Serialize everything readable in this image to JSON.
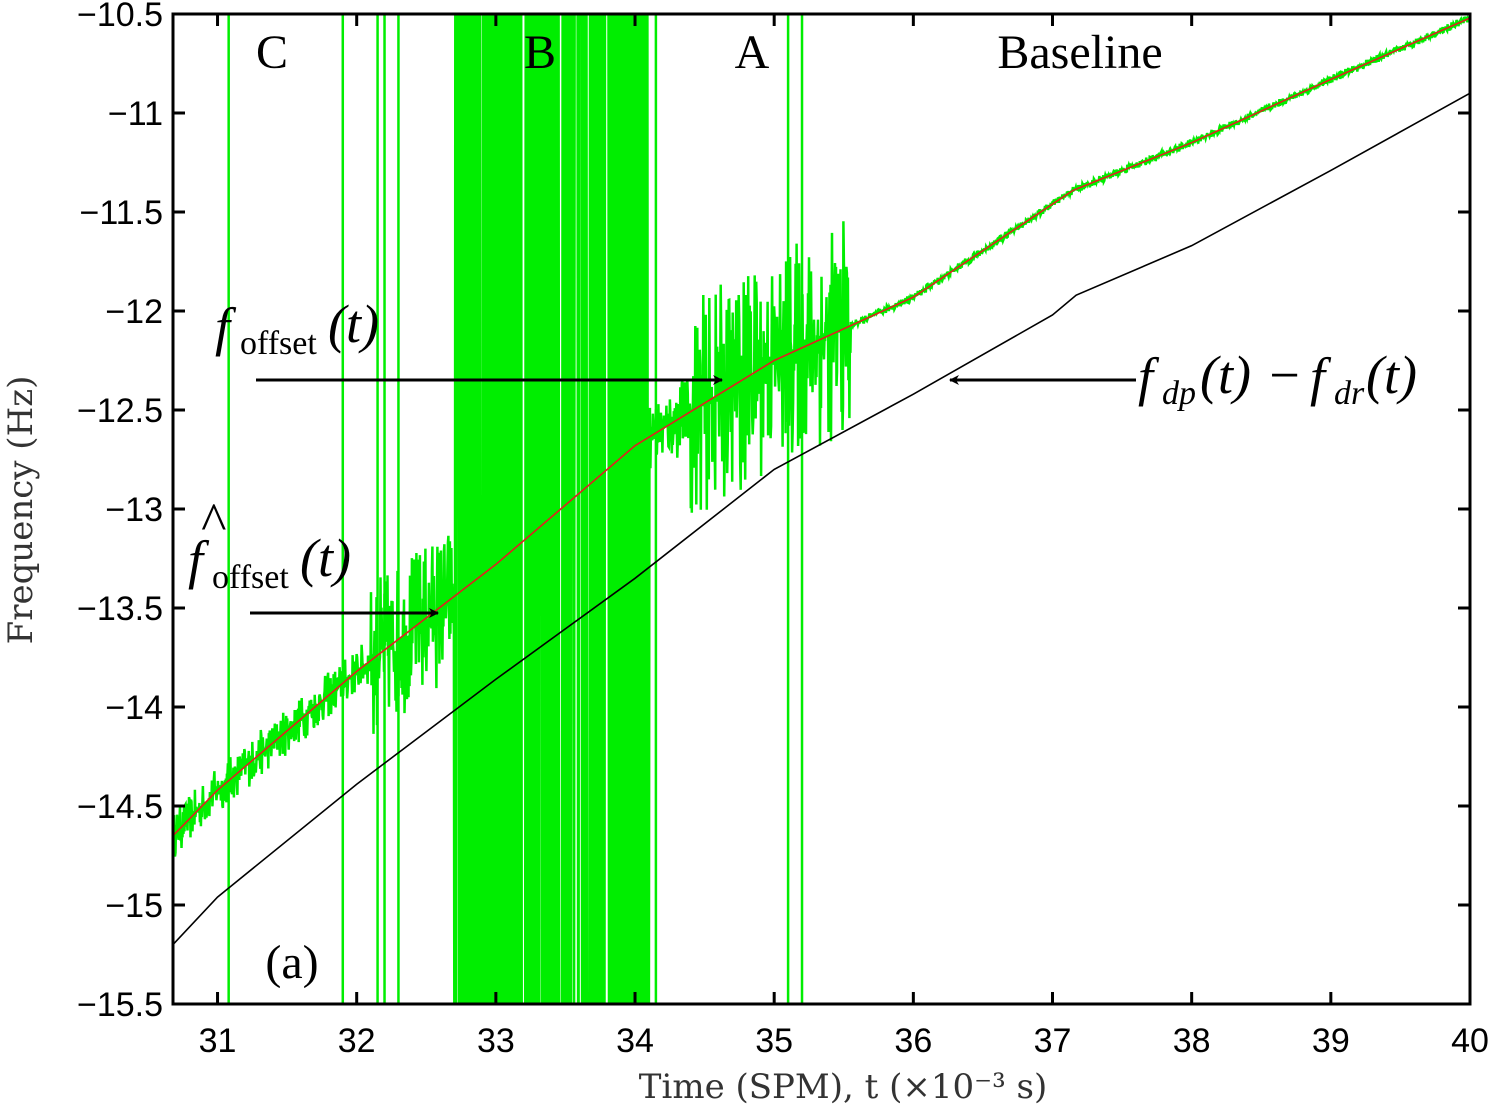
{
  "chart_data": {
    "type": "line",
    "title": "",
    "xlabel": "Time (SPM), t (×10⁻³ s)",
    "ylabel": "Frequency (Hz)",
    "xlim": [
      30.68,
      40
    ],
    "ylim": [
      -15.5,
      -10.5
    ],
    "xticks": [
      "31",
      "32",
      "33",
      "34",
      "35",
      "36",
      "37",
      "38",
      "39",
      "40"
    ],
    "yticks": [
      "-10.5",
      "-11",
      "-11.5",
      "-12",
      "-12.5",
      "-13",
      "-13.5",
      "-14",
      "-14.5",
      "-15",
      "-15.5"
    ],
    "grid": false,
    "colors": {
      "measured": "#00ee00",
      "fit": "#e02020",
      "reference": "#000000"
    },
    "series": [
      {
        "id": "fit",
        "x": [
          30.68,
          31,
          32,
          33,
          34,
          35,
          36,
          37,
          37.15,
          38,
          39,
          40
        ],
        "y": [
          -14.65,
          -14.42,
          -13.82,
          -13.28,
          -12.68,
          -12.25,
          -11.93,
          -11.46,
          -11.39,
          -11.15,
          -10.83,
          -10.52
        ]
      },
      {
        "id": "reference",
        "x": [
          30.68,
          31,
          32,
          33,
          34,
          35,
          36,
          37,
          37.17,
          38,
          39,
          40
        ],
        "y": [
          -15.2,
          -14.96,
          -14.39,
          -13.86,
          -13.35,
          -12.8,
          -12.42,
          -12.02,
          -11.92,
          -11.67,
          -11.29,
          -10.9
        ]
      },
      {
        "id": "measured",
        "noise_segments": [
          {
            "from": 30.68,
            "to": 32.1,
            "amplitude": 0.12
          },
          {
            "from": 32.1,
            "to": 32.7,
            "amplitude": 0.4
          },
          {
            "from": 32.7,
            "to": 34.1,
            "amplitude": 5
          },
          {
            "from": 34.1,
            "to": 34.4,
            "amplitude": 0.2
          },
          {
            "from": 34.4,
            "to": 35.55,
            "amplitude": 0.55
          },
          {
            "from": 35.55,
            "to": 40,
            "amplitude": 0.02
          }
        ],
        "spikes_x": [
          31.08,
          31.9,
          32.15,
          32.2,
          32.3,
          35.1,
          35.2,
          34.15,
          34.05
        ]
      }
    ],
    "annotations": {
      "regions": [
        "C",
        "B",
        "A",
        "Baseline"
      ],
      "panel": "(a)",
      "f_offset": {
        "base": "f",
        "sub": "offset",
        "arg": "(t)"
      },
      "f_hat_offset": {
        "base": "f",
        "hat": "^",
        "sub": "offset",
        "arg": "(t)"
      },
      "f_diff": {
        "base1": "f",
        "sub1": "dp",
        "arg1": "(t)",
        "minus": "−",
        "base2": "f",
        "sub2": "dr",
        "arg2": "(t)"
      }
    }
  }
}
